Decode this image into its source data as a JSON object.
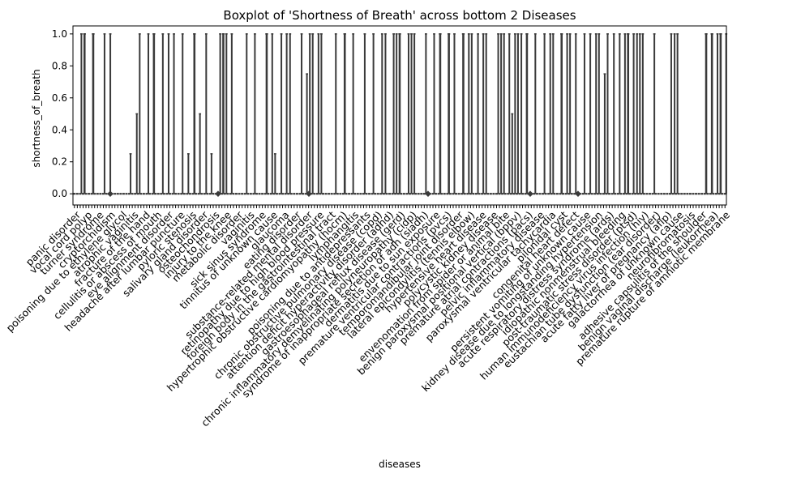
{
  "chart_data": {
    "type": "box",
    "title": "Boxplot of 'Shortness of Breath' across bottom 2 Diseases",
    "xlabel": "diseases",
    "ylabel": "shortness_of_breath",
    "ylim": [
      -0.07,
      1.05
    ],
    "yticks": [
      0.0,
      0.2,
      0.4,
      0.6,
      0.8,
      1.0
    ],
    "ytick_labels": [
      "0.0",
      "0.2",
      "0.4",
      "0.6",
      "0.8",
      "1.0"
    ],
    "category_count": 226,
    "outlier_value": 0.0,
    "upper_whisker_values": [
      1.0,
      0.75,
      0.5,
      0.25
    ],
    "categories": [
      "panic disorder",
      "vocal cord polyp",
      "turner syndrome",
      "cryptorchidism",
      "poisoning due to ethylene glycol",
      "atrophic vaginitis",
      "fracture of the hand",
      "cellulitis or abscess of mouth",
      "eye alignment disorder",
      "headache after lumbar puncture",
      "pyloric stenosis",
      "salivary gland disorder",
      "osteochondrosis",
      "injury to the knee",
      "metabolic disorder",
      "vaginitis",
      "sick sinus syndrome",
      "tinnitus of unknown cause",
      "glaucoma",
      "eating disorder",
      "substance-related mental disorder",
      "retinopathy due to high blood pressure",
      "foreign body in the gastrointestinal tract",
      "hypertrophic obstructive cardiomyopathy (hocm)",
      "lymphangitis",
      "poisoning due to antidepressants",
      "chronic obstructive pulmonary disease (copd)",
      "attention deficit hyperactivity disorder (adhd)",
      "gastroesophageal reflux disease (gerd)",
      "chronic inflammatory demyelinating polyneuropathy (cidp)",
      "syndrome of inappropriate secretion of adh (siadh)",
      "dermatitis due to sun exposure",
      "premature ventricular contractions (pvcs)",
      "temporomandibular joint disorder",
      "lateral epicondylitis (tennis elbow)",
      "hypertensive heart disease",
      "polycystic kidney disease",
      "envenomation from spider or animal bite",
      "benign paroxysmal positional vertical (bppv)",
      "premature atrial contractions (pacs)",
      "pelvic inflammatory disease",
      "paroxysmal ventricular tachycardia",
      "pilonidal cyst",
      "congenital heart defect",
      "persistent vomiting of unknown cause",
      "kidney disease due to longstanding hypertension",
      "acute respiratory distress syndrome (ards)",
      "idiopathic nonmenstrual bleeding",
      "post-traumatic stress disorder (ptsd)",
      "human immunodeficiency virus infection (hiv)",
      "eustachian tube dysfunction (ear disorder)",
      "acute fatty liver of pregnancy (aflp)",
      "galactorrhea of unknown cause",
      "neurofibromatosis",
      "adhesive capsulitis of the shoulder",
      "benign vaginal discharge (leukorrhea)",
      "premature rupture of amniotic membrane"
    ]
  }
}
